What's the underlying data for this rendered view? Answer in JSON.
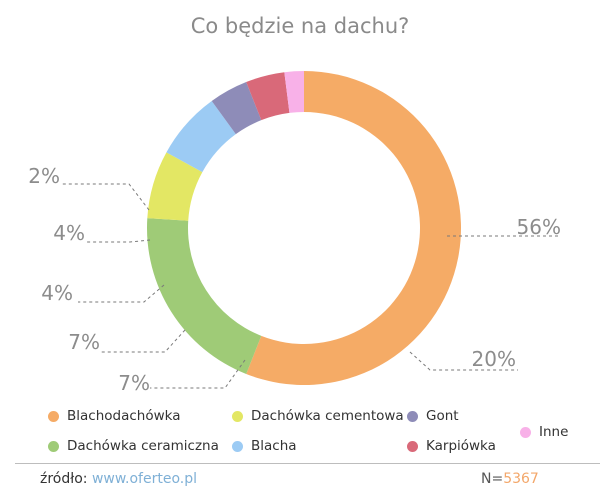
{
  "chart_data": {
    "type": "pie",
    "title": "Co będzie na dachu?",
    "series": [
      {
        "name": "Blachodachówka",
        "value": 56,
        "label": "56%",
        "color": "#f5ab66"
      },
      {
        "name": "Dachówka ceramiczna",
        "value": 20,
        "label": "20%",
        "color": "#9fcb77"
      },
      {
        "name": "Dachówka cementowa",
        "value": 7,
        "label": "7%",
        "color": "#e3e764"
      },
      {
        "name": "Blacha",
        "value": 7,
        "label": "7%",
        "color": "#9ccbf4"
      },
      {
        "name": "Gont",
        "value": 4,
        "label": "4%",
        "color": "#8e8cb8"
      },
      {
        "name": "Karpiówka",
        "value": 4,
        "label": "4%",
        "color": "#d96979"
      },
      {
        "name": "Inne",
        "value": 2,
        "label": "2%",
        "color": "#f8b1e8"
      }
    ],
    "legend": [
      {
        "name": "Blachodachówka",
        "color": "#f5ab66"
      },
      {
        "name": "Dachówka cementowa",
        "color": "#e3e764"
      },
      {
        "name": "Gont",
        "color": "#8e8cb8"
      },
      {
        "name": "Inne",
        "color": "#f8b1e8"
      },
      {
        "name": "Dachówka ceramiczna",
        "color": "#9fcb77"
      },
      {
        "name": "Blacha",
        "color": "#9ccbf4"
      },
      {
        "name": "Karpiówka",
        "color": "#d96979"
      }
    ]
  },
  "footer": {
    "source_label": "źródło:",
    "source_link": "www.oferteo.pl",
    "sample_label": "N=",
    "sample_value": "5367"
  }
}
